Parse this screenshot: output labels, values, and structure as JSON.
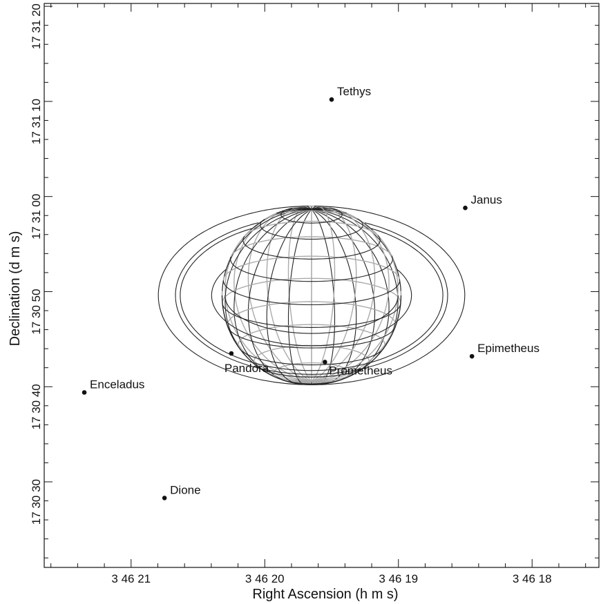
{
  "chart_data": {
    "type": "scatter",
    "title": "",
    "xlabel": "Right Ascension (h m s)",
    "ylabel": "Declination (d m s)",
    "x_ticks": [
      {
        "label": "3 46 21",
        "ra_sec": 21
      },
      {
        "label": "3 46 20",
        "ra_sec": 20
      },
      {
        "label": "3 46 19",
        "ra_sec": 19
      },
      {
        "label": "3 46 18",
        "ra_sec": 18
      }
    ],
    "y_ticks": [
      {
        "label": "17 31 20",
        "dec_sec": 80
      },
      {
        "label": "17 31 10",
        "dec_sec": 70
      },
      {
        "label": "17 31 00",
        "dec_sec": 60
      },
      {
        "label": "17 30 50",
        "dec_sec": 50
      },
      {
        "label": "17 30 40",
        "dec_sec": 40
      },
      {
        "label": "17 30 30",
        "dec_sec": 30
      }
    ],
    "xlim_ra_sec": [
      21.65,
      17.5
    ],
    "ylim_dec_sec": [
      80.3,
      21.0
    ],
    "planet": {
      "name": "Saturn",
      "center_ra_sec": 19.65,
      "center_dec_sec": 49.6,
      "radius_sec": 9.4
    },
    "rings_semi_axes_sec": [
      {
        "a": 16.1,
        "b": 9.4
      },
      {
        "a": 14.3,
        "b": 8.3
      },
      {
        "a": 13.8,
        "b": 7.9
      },
      {
        "a": 10.5,
        "b": 5.3
      },
      {
        "a": 9.1,
        "b": 4.0
      }
    ],
    "moons": [
      {
        "name": "Tethys",
        "ra_sec": 19.5,
        "dec_sec": 70.2
      },
      {
        "name": "Janus",
        "ra_sec": 18.5,
        "dec_sec": 58.8
      },
      {
        "name": "Epimetheus",
        "ra_sec": 18.45,
        "dec_sec": 43.2
      },
      {
        "name": "Pandora",
        "ra_sec": 20.25,
        "dec_sec": 43.5
      },
      {
        "name": "Prometheus",
        "ra_sec": 19.55,
        "dec_sec": 42.6
      },
      {
        "name": "Enceladus",
        "ra_sec": 21.35,
        "dec_sec": 39.4
      },
      {
        "name": "Dione",
        "ra_sec": 20.75,
        "dec_sec": 28.3
      }
    ]
  }
}
